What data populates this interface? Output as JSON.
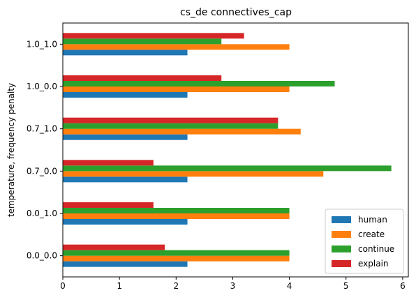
{
  "chart_data": {
    "type": "bar",
    "orientation": "horizontal",
    "title": "cs_de connectives_cap",
    "xlabel": "",
    "ylabel": "temperature, frequency penalty",
    "categories": [
      "0.0_0.0",
      "0.0_1.0",
      "0.7_0.0",
      "0.7_1.0",
      "1.0_0.0",
      "1.0_1.0"
    ],
    "xlim": [
      0,
      6.1
    ],
    "xticks": [
      "0",
      "1",
      "2",
      "3",
      "4",
      "5",
      "6"
    ],
    "grid": false,
    "legend_position": "lower right",
    "series": [
      {
        "name": "human",
        "color": "#1f77b4",
        "values": [
          2.2,
          2.2,
          2.2,
          2.2,
          2.2,
          2.2
        ]
      },
      {
        "name": "create",
        "color": "#ff7f0e",
        "values": [
          4.0,
          4.0,
          4.6,
          4.2,
          4.0,
          4.0
        ]
      },
      {
        "name": "continue",
        "color": "#2ca02c",
        "values": [
          4.0,
          4.0,
          5.8,
          3.8,
          4.8,
          2.8
        ]
      },
      {
        "name": "explain",
        "color": "#d62728",
        "values": [
          1.8,
          1.6,
          1.6,
          3.8,
          2.8,
          3.2
        ]
      }
    ]
  }
}
